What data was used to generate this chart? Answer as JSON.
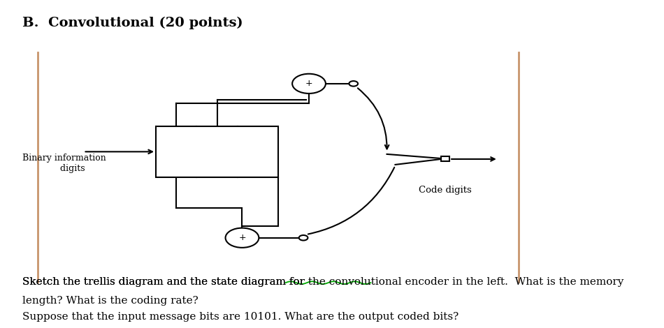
{
  "title": "B.  Convolutional (20 points)",
  "title_fontsize": 14,
  "bg_color": "#ffffff",
  "line_color": "#000000",
  "border_left_color": "#c8956c",
  "border_right_color": "#c8956c",
  "text_binary": "Binary information\n      digits",
  "text_code": "Code digits",
  "font_size_body": 11,
  "underline_color": "#00aa00",
  "body_line1a": "Sketch the trellis diagram and the state diagram for ",
  "body_line1b": "the convolutional",
  "body_line1c": " encoder in the left.  What is the memory",
  "body_line2": "length? What is the coding rate?",
  "body_line3": "Suppose that the input message bits are 10101. What are the output coded bits?"
}
